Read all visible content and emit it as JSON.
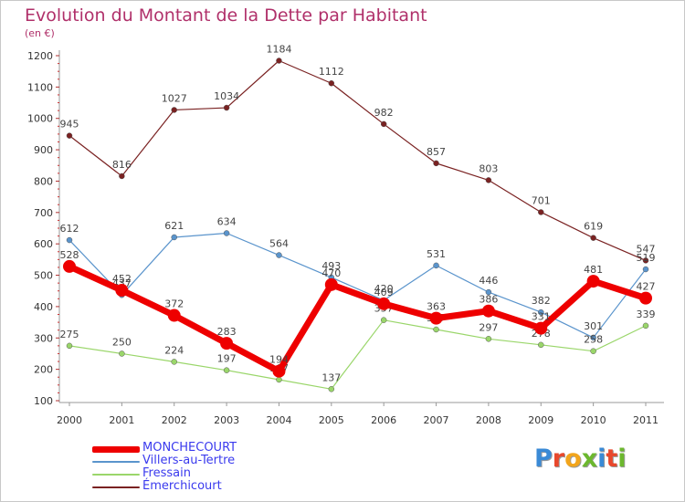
{
  "title": "Evolution du Montant de la Dette par Habitant",
  "subtitle": "(en €)",
  "logo": {
    "text": "Proxiti",
    "colors": [
      "#3a8ad6",
      "#e8482c",
      "#f2a51c",
      "#6cb82e",
      "#3a8ad6",
      "#e8482c",
      "#6cb82e"
    ]
  },
  "chart_data": {
    "type": "line",
    "title": "Evolution du Montant de la Dette par Habitant",
    "ylabel": "(en €)",
    "xlabel": "",
    "x": [
      "2000",
      "2001",
      "2002",
      "2003",
      "2004",
      "2005",
      "2006",
      "2007",
      "2008",
      "2009",
      "2010",
      "2011"
    ],
    "ylim": [
      100,
      1200
    ],
    "yticks": [
      100,
      200,
      300,
      400,
      500,
      600,
      700,
      800,
      900,
      1000,
      1100,
      1200
    ],
    "grid": false,
    "legend_position": "bottom-left",
    "series": [
      {
        "name": "Émerchicourt",
        "color": "#7a2222",
        "values": [
          945,
          816,
          1027,
          1034,
          1184,
          1112,
          982,
          857,
          803,
          701,
          619,
          547
        ]
      },
      {
        "name": "Villers-au-Tertre",
        "color": "#5a94cc",
        "values": [
          612,
          437,
          621,
          634,
          564,
          493,
          420,
          531,
          446,
          382,
          301,
          519
        ]
      },
      {
        "name": "Fressain",
        "color": "#9ad66a",
        "values": [
          275,
          250,
          224,
          197,
          167,
          137,
          357,
          327,
          297,
          278,
          258,
          339
        ]
      },
      {
        "name": "MONCHECOURT",
        "color": "#ee0000",
        "values": [
          528,
          452,
          372,
          283,
          194,
          470,
          409,
          363,
          386,
          331,
          481,
          427
        ]
      }
    ],
    "legend": [
      "MONCHECOURT",
      "Villers-au-Tertre",
      "Fressain",
      "Émerchicourt"
    ]
  }
}
